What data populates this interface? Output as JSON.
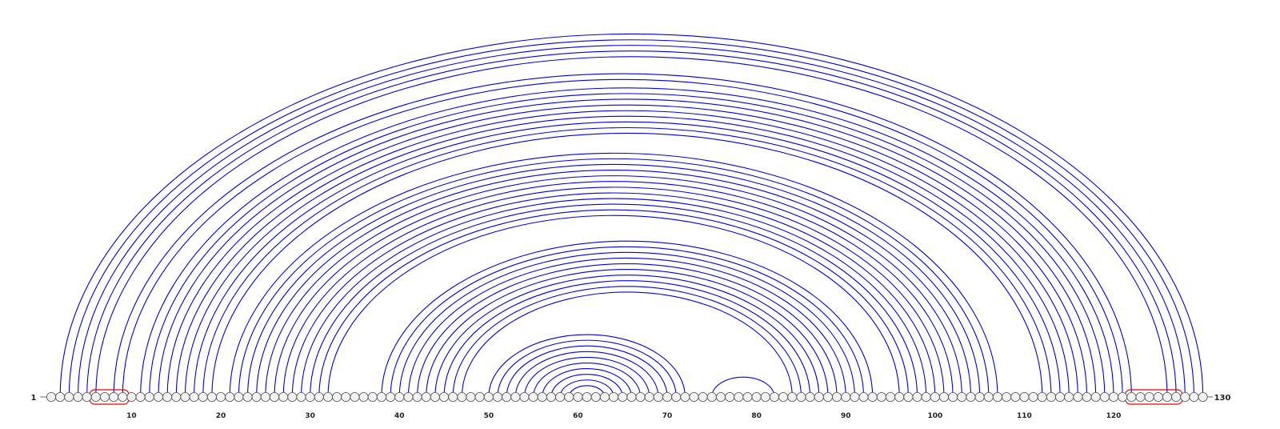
{
  "diagram": {
    "sequence_length": 130,
    "start_label": "1",
    "end_label": "130",
    "tick_labels": [
      "10",
      "20",
      "30",
      "40",
      "50",
      "60",
      "70",
      "80",
      "90",
      "100",
      "110",
      "120"
    ],
    "tick_positions": [
      10,
      20,
      30,
      40,
      50,
      60,
      70,
      80,
      90,
      100,
      110,
      120
    ],
    "colors": {
      "arc": "#0000e6",
      "node_fill": "#f2f2f2",
      "node_stroke": "#555555",
      "backbone": "#666666",
      "highlight": "#ee0000",
      "label": "#222222"
    },
    "highlight_regions": [
      {
        "start": 6,
        "end": 9
      },
      {
        "start": 122,
        "end": 127
      }
    ],
    "arc_groups": [
      {
        "pairs": [
          [
            2,
            130
          ],
          [
            3,
            129
          ],
          [
            4,
            128
          ],
          [
            5,
            127
          ],
          [
            6,
            126
          ]
        ]
      },
      {
        "pairs": [
          [
            8,
            122
          ],
          [
            9,
            121
          ],
          [
            11,
            120
          ],
          [
            12,
            119
          ],
          [
            13,
            118
          ],
          [
            14,
            117
          ],
          [
            15,
            116
          ],
          [
            16,
            115
          ],
          [
            17,
            114
          ],
          [
            18,
            113
          ],
          [
            19,
            112
          ]
        ]
      },
      {
        "pairs": [
          [
            21,
            107
          ],
          [
            22,
            106
          ],
          [
            23,
            105
          ],
          [
            24,
            104
          ],
          [
            25,
            103
          ],
          [
            26,
            102
          ],
          [
            27,
            101
          ],
          [
            28,
            100
          ],
          [
            29,
            99
          ],
          [
            30,
            98
          ],
          [
            31,
            97
          ],
          [
            32,
            96
          ]
        ]
      },
      {
        "pairs": [
          [
            38,
            93
          ],
          [
            39,
            92
          ],
          [
            40,
            91
          ],
          [
            41,
            90
          ],
          [
            42,
            89
          ],
          [
            43,
            88
          ],
          [
            44,
            87
          ],
          [
            45,
            86
          ],
          [
            46,
            85
          ],
          [
            47,
            84
          ]
        ]
      },
      {
        "pairs": [
          [
            50,
            72
          ],
          [
            51,
            71
          ],
          [
            52,
            70
          ],
          [
            53,
            69
          ],
          [
            54,
            68
          ],
          [
            55,
            67
          ],
          [
            56,
            66
          ],
          [
            57,
            65
          ],
          [
            58,
            64
          ],
          [
            59,
            63
          ]
        ]
      },
      {
        "pairs": [
          [
            75,
            82
          ]
        ]
      }
    ]
  }
}
